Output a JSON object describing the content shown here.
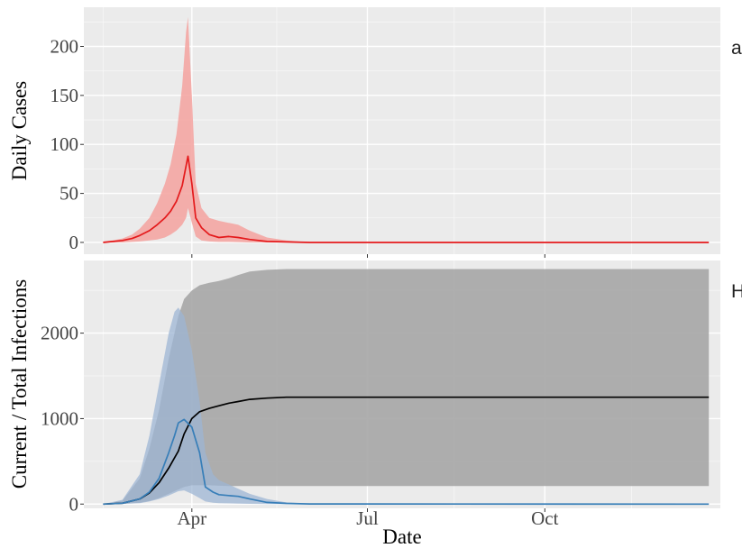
{
  "chart_data": [
    {
      "type": "line",
      "ylabel": "Daily Cases",
      "side_label": "a",
      "ylim": [
        -12,
        240
      ],
      "yticks": [
        0,
        50,
        100,
        150,
        200
      ],
      "grid": true,
      "series": [
        {
          "color": "#e41a1c",
          "band_color": "#f4a6a3",
          "x": [
            "2020-02-15",
            "2020-02-20",
            "2020-02-25",
            "2020-03-01",
            "2020-03-05",
            "2020-03-10",
            "2020-03-14",
            "2020-03-18",
            "2020-03-21",
            "2020-03-24",
            "2020-03-27",
            "2020-03-29",
            "2020-03-30",
            "2020-04-01",
            "2020-04-03",
            "2020-04-06",
            "2020-04-10",
            "2020-04-15",
            "2020-04-20",
            "2020-04-25",
            "2020-05-01",
            "2020-05-10",
            "2020-05-20",
            "2020-06-01",
            "2020-07-01",
            "2020-09-01",
            "2020-11-01",
            "2020-12-25"
          ],
          "mean": [
            0,
            1,
            2,
            4,
            7,
            12,
            18,
            25,
            32,
            42,
            58,
            78,
            88,
            60,
            25,
            15,
            8,
            5,
            6,
            5,
            3,
            1,
            0.5,
            0,
            0,
            0,
            0,
            0
          ],
          "lower": [
            0,
            0,
            0,
            0.5,
            1,
            2,
            3,
            5,
            8,
            12,
            18,
            25,
            35,
            20,
            6,
            2,
            1,
            0.5,
            0.5,
            0.3,
            0,
            0,
            0,
            0,
            0,
            0,
            0,
            0
          ],
          "upper": [
            1,
            2,
            4,
            8,
            14,
            25,
            40,
            60,
            80,
            110,
            160,
            215,
            230,
            150,
            60,
            35,
            25,
            22,
            20,
            18,
            12,
            5,
            2,
            0,
            0,
            0,
            0,
            0
          ]
        }
      ]
    },
    {
      "type": "line",
      "xlabel": "Date",
      "ylabel": "Current / Total Infections",
      "side_label": "H",
      "ylim": [
        -50,
        2850
      ],
      "yticks": [
        0,
        1000,
        2000
      ],
      "xtick_labels": [
        "Apr",
        "Jul",
        "Oct"
      ],
      "grid": true,
      "series": [
        {
          "color": "#000000",
          "band_color": "#a6a6a6",
          "x": [
            "2020-02-15",
            "2020-02-25",
            "2020-03-05",
            "2020-03-10",
            "2020-03-15",
            "2020-03-20",
            "2020-03-25",
            "2020-03-28",
            "2020-04-01",
            "2020-04-05",
            "2020-04-10",
            "2020-04-15",
            "2020-04-20",
            "2020-04-25",
            "2020-05-01",
            "2020-05-10",
            "2020-05-20",
            "2020-06-01",
            "2020-12-25"
          ],
          "mean": [
            0,
            10,
            60,
            130,
            250,
            420,
            620,
            820,
            1000,
            1080,
            1120,
            1150,
            1180,
            1200,
            1225,
            1240,
            1250,
            1250,
            1250
          ],
          "lower": [
            0,
            2,
            15,
            35,
            70,
            120,
            170,
            200,
            220,
            220,
            220,
            215,
            210,
            210,
            210,
            210,
            210,
            210,
            210
          ],
          "upper": [
            0,
            40,
            300,
            650,
            1100,
            1700,
            2200,
            2400,
            2500,
            2560,
            2590,
            2610,
            2640,
            2680,
            2720,
            2740,
            2750,
            2750,
            2750
          ]
        },
        {
          "color": "#377eb8",
          "band_color": "#9db6d4",
          "x": [
            "2020-02-15",
            "2020-02-25",
            "2020-03-05",
            "2020-03-10",
            "2020-03-15",
            "2020-03-20",
            "2020-03-23",
            "2020-03-25",
            "2020-03-28",
            "2020-04-01",
            "2020-04-05",
            "2020-04-08",
            "2020-04-12",
            "2020-04-15",
            "2020-04-20",
            "2020-04-25",
            "2020-05-01",
            "2020-05-10",
            "2020-05-20",
            "2020-06-01",
            "2020-12-25"
          ],
          "mean": [
            0,
            10,
            60,
            140,
            300,
            600,
            800,
            950,
            990,
            900,
            600,
            200,
            140,
            110,
            100,
            90,
            60,
            20,
            8,
            2,
            0
          ],
          "lower": [
            0,
            2,
            10,
            30,
            60,
            100,
            130,
            150,
            160,
            120,
            70,
            30,
            15,
            10,
            8,
            5,
            3,
            1,
            0,
            0,
            0
          ],
          "upper": [
            0,
            50,
            350,
            800,
            1400,
            2000,
            2250,
            2300,
            2200,
            1800,
            1200,
            600,
            350,
            280,
            230,
            180,
            120,
            60,
            20,
            5,
            0
          ]
        }
      ]
    }
  ]
}
